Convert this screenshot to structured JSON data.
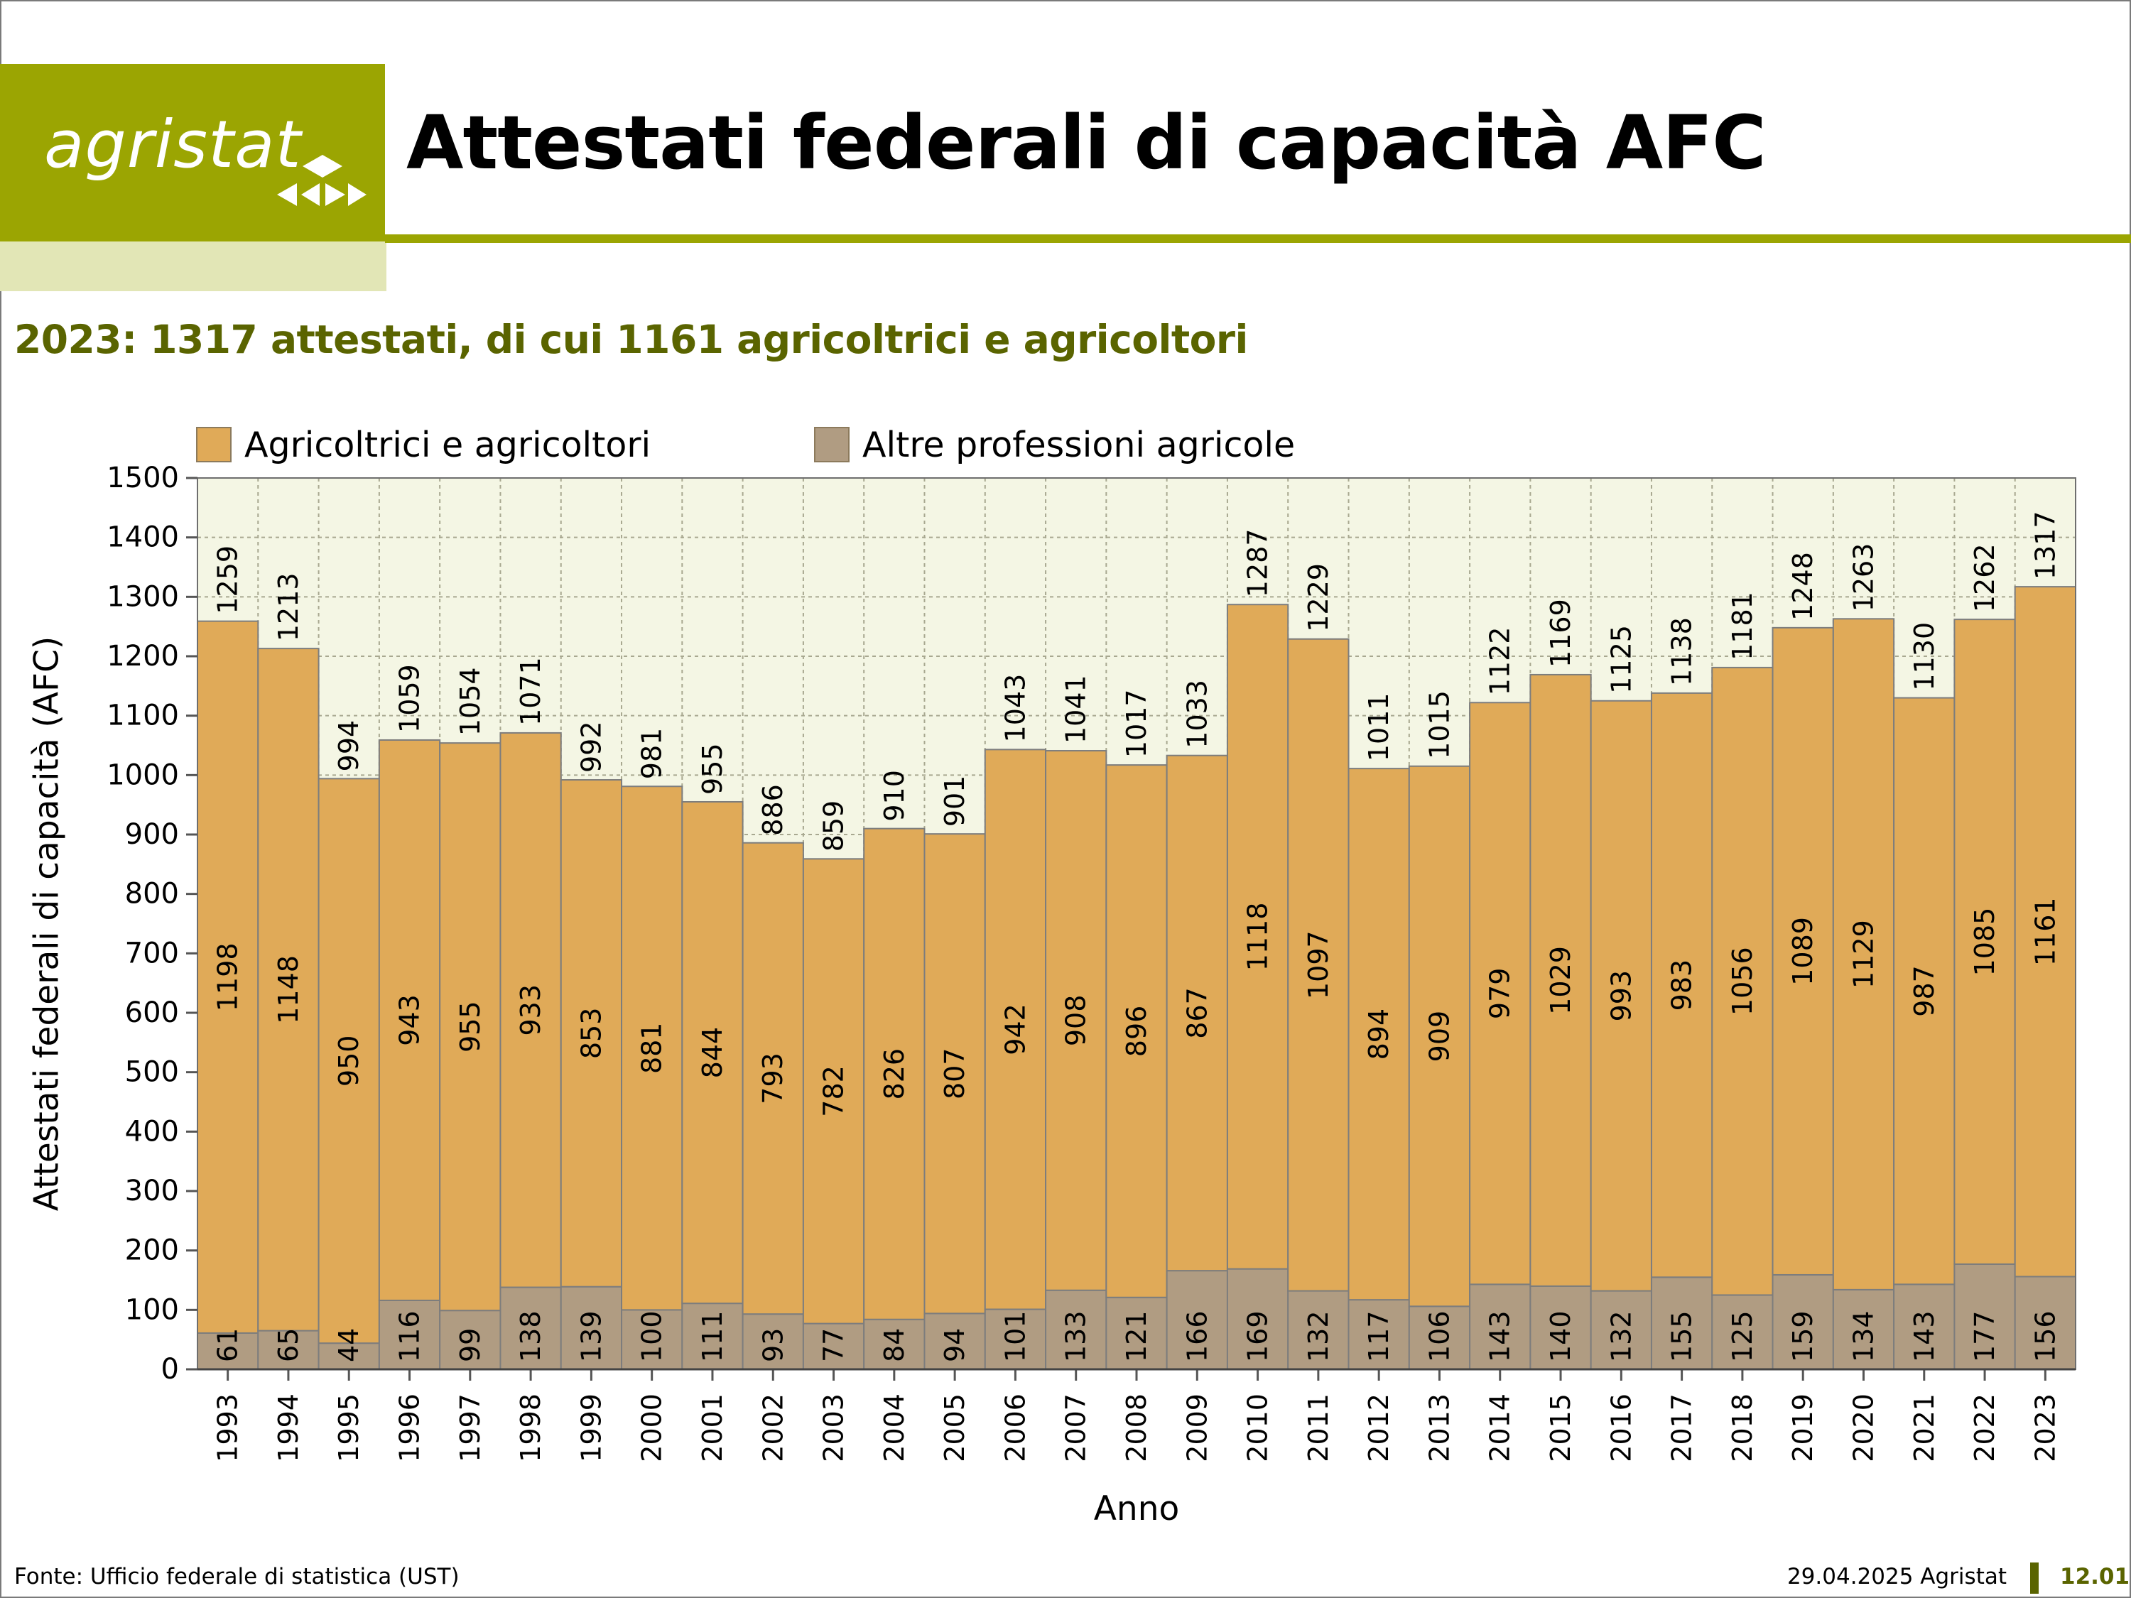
{
  "header": {
    "logo_text": "agristat",
    "title": "Attestati federali di capacità AFC"
  },
  "subtitle": "2023: 1317 attestati, di cui 1161 agricoltrici e agricoltori",
  "footer": {
    "source": "Fonte: Ufficio federale di statistica (UST)",
    "date": "29.04.2025 Agristat",
    "page": "12.01"
  },
  "colors": {
    "brand": "#9ba502",
    "brand_light": "#e2e6b6",
    "subtitle": "#5a6400",
    "series_farmers": "#e0aa58",
    "series_other": "#b09c82",
    "plot_bg": "#f4f6e4"
  },
  "chart_data": {
    "type": "bar",
    "stacked": true,
    "xlabel": "Anno",
    "ylabel": "Attestati federali di capacità (AFC)",
    "ylim": [
      0,
      1500
    ],
    "yticks": [
      0,
      100,
      200,
      300,
      400,
      500,
      600,
      700,
      800,
      900,
      1000,
      1100,
      1200,
      1300,
      1400,
      1500
    ],
    "grid": true,
    "legend_position": "top",
    "categories": [
      "1993",
      "1994",
      "1995",
      "1996",
      "1997",
      "1998",
      "1999",
      "2000",
      "2001",
      "2002",
      "2003",
      "2004",
      "2005",
      "2006",
      "2007",
      "2008",
      "2009",
      "2010",
      "2011",
      "2012",
      "2013",
      "2014",
      "2015",
      "2016",
      "2017",
      "2018",
      "2019",
      "2020",
      "2021",
      "2022",
      "2023"
    ],
    "series": [
      {
        "name": "Altre professioni agricole",
        "values": [
          61,
          65,
          44,
          116,
          99,
          138,
          139,
          100,
          111,
          93,
          77,
          84,
          94,
          101,
          133,
          121,
          166,
          169,
          132,
          117,
          106,
          143,
          140,
          132,
          155,
          125,
          159,
          134,
          143,
          177,
          156
        ]
      },
      {
        "name": "Agricoltrici e agricoltori",
        "values": [
          1198,
          1148,
          950,
          943,
          955,
          933,
          853,
          881,
          844,
          793,
          782,
          826,
          807,
          942,
          908,
          896,
          867,
          1118,
          1097,
          894,
          909,
          979,
          1029,
          993,
          983,
          1056,
          1089,
          1129,
          987,
          1085,
          1161
        ]
      }
    ],
    "totals": [
      1259,
      1213,
      994,
      1059,
      1054,
      1071,
      992,
      981,
      955,
      886,
      859,
      910,
      901,
      1043,
      1041,
      1017,
      1033,
      1287,
      1229,
      1011,
      1015,
      1122,
      1169,
      1125,
      1138,
      1181,
      1248,
      1263,
      1130,
      1262,
      1317
    ]
  }
}
